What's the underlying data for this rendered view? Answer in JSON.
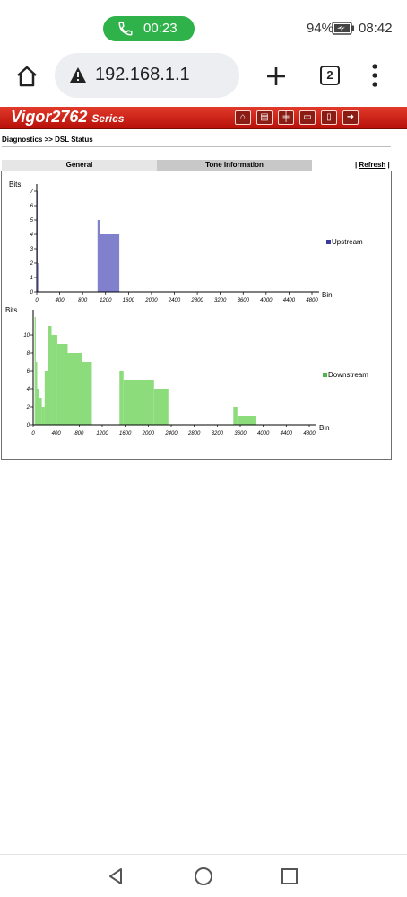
{
  "status_bar": {
    "call_timer": "00:23",
    "battery_percent": "94%",
    "time": "08:42",
    "icons": [
      "phone-icon",
      "battery-charging-icon"
    ]
  },
  "browser": {
    "url": "192.168.1.1",
    "tab_count": "2",
    "icons": [
      "home-icon",
      "warning-icon",
      "plus-icon",
      "tabs-icon",
      "more-vert-icon"
    ]
  },
  "router": {
    "logo": "Vigor2762",
    "logo_series": "Series",
    "breadcrumb": "Diagnostics >> DSL Status",
    "tabs": [
      {
        "label": "General",
        "active": false
      },
      {
        "label": "Tone Information",
        "active": true
      }
    ],
    "refresh_label": "Refresh",
    "refresh_sep": "|",
    "header_icons": [
      "home-icon",
      "layout-icon",
      "settings-sliders-icon",
      "print-icon",
      "book-icon",
      "logout-icon"
    ]
  },
  "chart_data": [
    {
      "type": "bar",
      "ylabel": "Bits",
      "xlabel": "Bin",
      "legend": "Upstream",
      "color": "#8080cc",
      "xlim": [
        0,
        4800
      ],
      "ylim": [
        0,
        7
      ],
      "xticks": [
        "0",
        "400",
        "800",
        "1200",
        "1600",
        "2000",
        "2400",
        "2800",
        "3200",
        "3600",
        "4000",
        "4400",
        "4800"
      ],
      "yticks": [
        "0",
        "1",
        "2",
        "3",
        "4",
        "5",
        "6",
        "7"
      ],
      "segments": [
        {
          "x0": 0,
          "x1": 12,
          "y": 7
        },
        {
          "x0": 12,
          "x1": 20,
          "y": 2
        },
        {
          "x0": 1060,
          "x1": 1110,
          "y": 5
        },
        {
          "x0": 1110,
          "x1": 1440,
          "y": 4
        }
      ]
    },
    {
      "type": "bar",
      "ylabel": "Bits",
      "xlabel": "Bin",
      "legend": "Downstream",
      "color": "#8ddc7c",
      "xlim": [
        0,
        4800
      ],
      "ylim": [
        0,
        12
      ],
      "xticks": [
        "0",
        "400",
        "800",
        "1200",
        "1600",
        "2000",
        "2400",
        "2800",
        "3200",
        "3600",
        "4000",
        "4400",
        "4800"
      ],
      "yticks": [
        "0",
        "2",
        "4",
        "6",
        "8",
        "10"
      ],
      "segments": [
        {
          "x0": 25,
          "x1": 45,
          "y": 12
        },
        {
          "x0": 45,
          "x1": 70,
          "y": 7
        },
        {
          "x0": 70,
          "x1": 95,
          "y": 4
        },
        {
          "x0": 95,
          "x1": 150,
          "y": 3
        },
        {
          "x0": 150,
          "x1": 200,
          "y": 2
        },
        {
          "x0": 200,
          "x1": 260,
          "y": 6
        },
        {
          "x0": 260,
          "x1": 320,
          "y": 11
        },
        {
          "x0": 320,
          "x1": 420,
          "y": 10
        },
        {
          "x0": 420,
          "x1": 600,
          "y": 9
        },
        {
          "x0": 600,
          "x1": 850,
          "y": 8
        },
        {
          "x0": 850,
          "x1": 1020,
          "y": 7
        },
        {
          "x0": 1500,
          "x1": 1570,
          "y": 6
        },
        {
          "x0": 1570,
          "x1": 2100,
          "y": 5
        },
        {
          "x0": 2100,
          "x1": 2350,
          "y": 4
        },
        {
          "x0": 3480,
          "x1": 3550,
          "y": 2
        },
        {
          "x0": 3550,
          "x1": 3880,
          "y": 1
        }
      ]
    }
  ]
}
